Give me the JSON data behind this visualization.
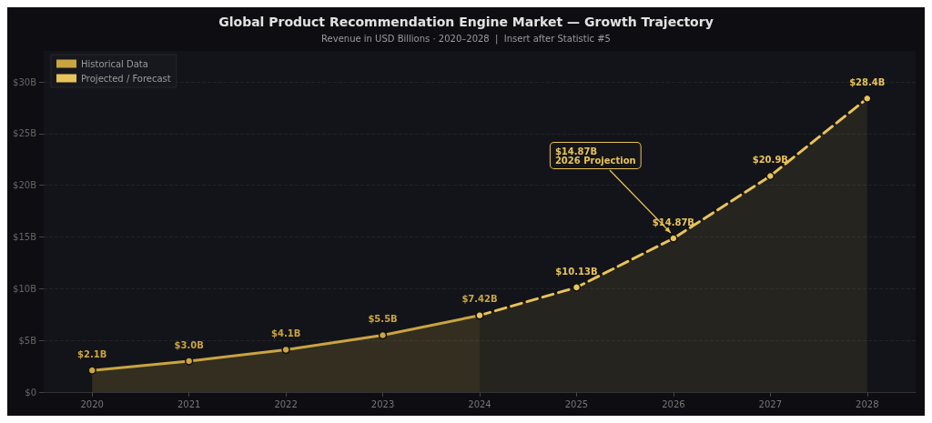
{
  "chart_data": {
    "type": "area",
    "title": "Global Product Recommendation Engine Market — Growth Trajectory",
    "subtitle": "Revenue in USD Billions · 2020–2028  |  Insert after Statistic #5",
    "categories": [
      "2020",
      "2021",
      "2022",
      "2023",
      "2024",
      "2025",
      "2026",
      "2027",
      "2028"
    ],
    "series": [
      {
        "name": "Historical Data",
        "color": "#c9a441",
        "line_style": "solid",
        "values": [
          2.1,
          3.0,
          4.1,
          5.5,
          7.42,
          null,
          null,
          null,
          null
        ],
        "value_labels": [
          "$2.1B",
          "$3.0B",
          "$4.1B",
          "$5.5B",
          "$7.42B",
          null,
          null,
          null,
          null
        ]
      },
      {
        "name": "Projected / Forecast",
        "color": "#e8c35a",
        "line_style": "dashed",
        "values": [
          null,
          null,
          null,
          null,
          7.42,
          10.13,
          14.87,
          20.9,
          28.4
        ],
        "value_labels": [
          null,
          null,
          null,
          null,
          null,
          "$10.13B",
          "$14.87B",
          "$20.9B",
          "$28.4B"
        ]
      }
    ],
    "ylim": [
      0,
      33
    ],
    "yticks": [
      {
        "value": 0,
        "label": "$0"
      },
      {
        "value": 5,
        "label": "$5B"
      },
      {
        "value": 10,
        "label": "$10B"
      },
      {
        "value": 15,
        "label": "$15B"
      },
      {
        "value": 20,
        "label": "$20B"
      },
      {
        "value": 25,
        "label": "$25B"
      },
      {
        "value": 30,
        "label": "$30B"
      }
    ],
    "annotations": [
      {
        "text": "$14.87B\n2026 Projection",
        "x": "2026",
        "y": 14.87
      }
    ],
    "grid": "y",
    "legend": "top left",
    "marker": "circle"
  }
}
